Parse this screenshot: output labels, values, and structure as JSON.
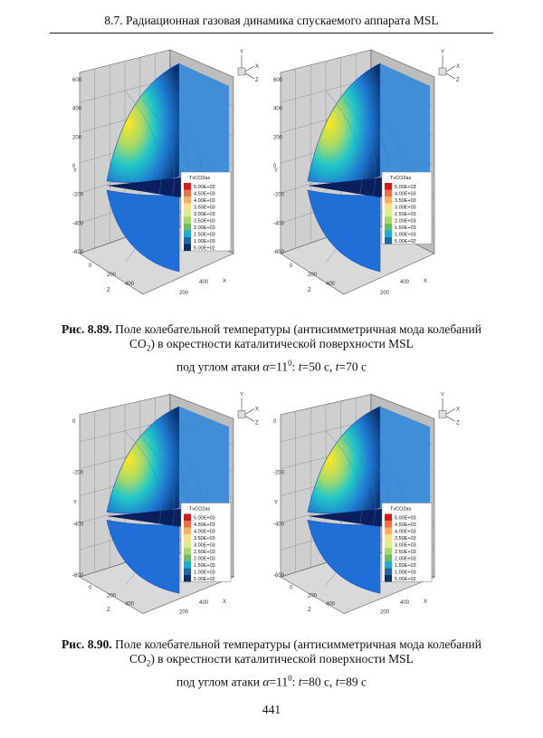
{
  "header": {
    "title": "8.7. Радиационная газовая динамика спускаемого аппарата MSL"
  },
  "figures": [
    {
      "id": "fig-8-89",
      "label": "Рис. 8.89.",
      "caption_lines": [
        "Поле колебательной температуры (антисимметричная мода колебаний",
        "CO",
        "2",
        ") в окрестности каталитической поверхности MSL",
        "под углом атаки ",
        "α",
        "=11",
        "0",
        ": ",
        "t",
        "=50 с, ",
        "t",
        "=70 с"
      ],
      "panels": [
        {
          "legend_title": "TvCO2as",
          "legend_values": [
            "5.00E+03",
            "4.50E+03",
            "4.00E+03",
            "3.50E+03",
            "3.00E+03",
            "2.50E+03",
            "2.00E+03",
            "1.50E+03",
            "1.00E+03",
            "5.00E+02"
          ],
          "y_ticks": [
            "600",
            "400",
            "200",
            "0",
            "-200",
            "-400",
            "-600"
          ],
          "z_ticks": [
            "0",
            "200",
            "400"
          ],
          "x_ticks": [
            "200",
            "400"
          ],
          "axis_y": "Y",
          "axis_x": "X",
          "axis_z": "Z"
        },
        {
          "legend_title": "TvCO2as",
          "legend_values": [
            "5.00E+03",
            "4.00E+03",
            "3.50E+03",
            "3.00E+03",
            "2.50E+03",
            "2.00E+03",
            "1.50E+03",
            "1.00E+03",
            "5.00E+02"
          ],
          "y_ticks": [
            "600",
            "400",
            "200",
            "0",
            "-200",
            "-400",
            "-600"
          ],
          "z_ticks": [
            "0",
            "200",
            "400"
          ],
          "x_ticks": [
            "200",
            "400"
          ],
          "axis_y": "Y",
          "axis_x": "X",
          "axis_z": "Z"
        }
      ]
    },
    {
      "id": "fig-8-90",
      "label": "Рис. 8.90.",
      "caption_lines": [
        "Поле колебательной температуры (антисимметричная мода колебаний",
        "CO",
        "2",
        ") в окрестности каталитической поверхности MSL",
        "под углом атаки ",
        "α",
        "=11",
        "0",
        ": ",
        "t",
        "=80 с, ",
        "t",
        "=89 с"
      ],
      "panels": [
        {
          "legend_title": "TvCO2as",
          "legend_values": [
            "5.00E+03",
            "4.50E+03",
            "4.00E+03",
            "3.50E+03",
            "3.00E+03",
            "2.50E+03",
            "2.00E+03",
            "1.50E+03",
            "1.00E+03",
            "5.00E+02"
          ],
          "y_ticks": [
            "0",
            "-200",
            "-400",
            "-600"
          ],
          "z_ticks": [
            "0",
            "200",
            "400"
          ],
          "x_ticks": [
            "200",
            "400"
          ],
          "axis_y": "Y",
          "axis_x": "X",
          "axis_z": "Z"
        },
        {
          "legend_title": "TvCO2as",
          "legend_values": [
            "5.00E+03",
            "4.50E+03",
            "4.00E+03",
            "3.50E+03",
            "3.00E+03",
            "2.50E+03",
            "2.00E+03",
            "1.50E+03",
            "1.00E+03",
            "5.00E+02"
          ],
          "y_ticks": [
            "0",
            "-200",
            "-400",
            "-600"
          ],
          "z_ticks": [
            "0",
            "200",
            "400"
          ],
          "x_ticks": [
            "200",
            "400"
          ],
          "axis_y": "Y",
          "axis_x": "X",
          "axis_z": "Z"
        }
      ]
    }
  ],
  "page_number": "441",
  "colors": {
    "legend_scale": [
      "#d7191c",
      "#f46d43",
      "#fdae61",
      "#fee08b",
      "#d9ef8b",
      "#a6d96a",
      "#66bd63",
      "#1aafd0",
      "#2166ac",
      "#08306b"
    ]
  }
}
